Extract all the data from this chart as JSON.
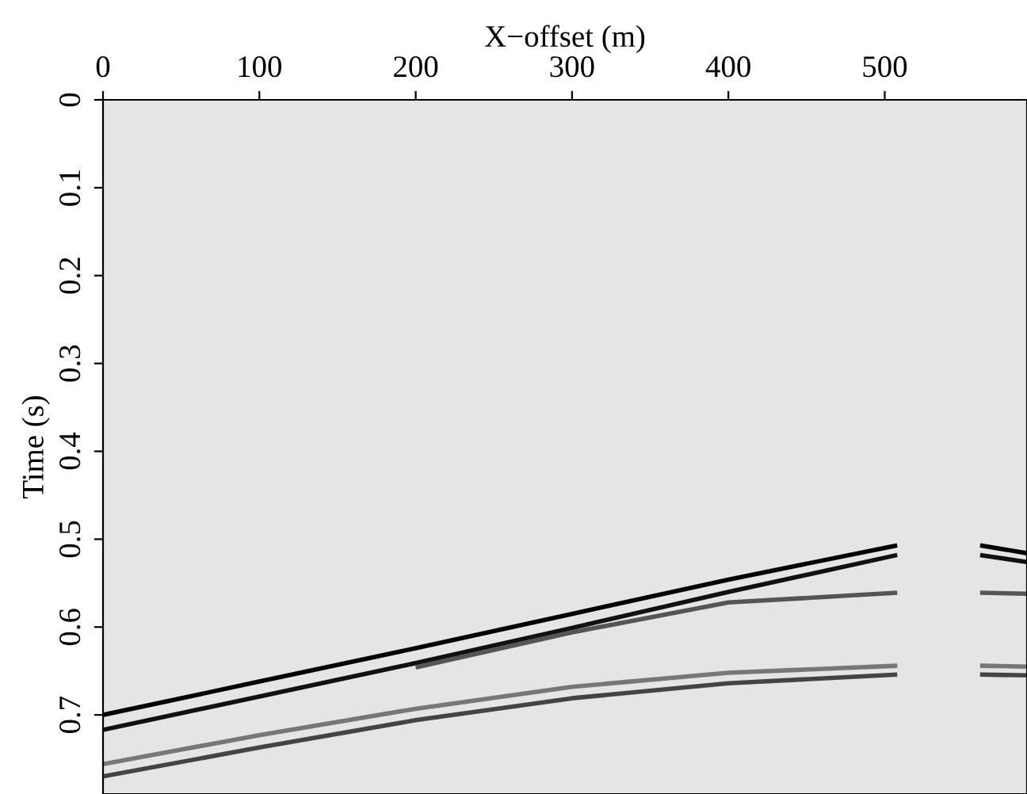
{
  "chart_data": {
    "type": "line",
    "xlabel": "X−offset (m)",
    "ylabel": "Time (s)",
    "x": [
      0,
      100,
      200,
      300,
      400,
      508,
      535,
      561,
      591
    ],
    "series": [
      {
        "color": "#000000",
        "values": [
          0.7,
          0.662,
          0.624,
          0.585,
          0.546,
          0.507,
          null,
          0.507,
          0.516
        ]
      },
      {
        "color": "#111111",
        "values": [
          0.717,
          0.679,
          0.641,
          0.601,
          0.56,
          0.518,
          null,
          0.518,
          0.526
        ]
      },
      {
        "color": "#555555",
        "values": [
          null,
          null,
          0.646,
          0.606,
          0.572,
          0.561,
          null,
          0.561,
          0.562
        ]
      },
      {
        "color": "#444444",
        "values": [
          0.77,
          0.737,
          0.706,
          0.681,
          0.664,
          0.654,
          null,
          0.654,
          0.655
        ]
      },
      {
        "color": "#777777",
        "values": [
          0.756,
          0.723,
          0.693,
          0.668,
          0.652,
          0.644,
          null,
          0.644,
          0.645
        ]
      }
    ],
    "xlim": [
      0,
      591
    ],
    "xticks": [
      0,
      100,
      200,
      300,
      400,
      500
    ],
    "ylim": [
      0.79,
      0
    ],
    "yticks": [
      0,
      0.1,
      0.2,
      0.3,
      0.4,
      0.5,
      0.6,
      0.7
    ],
    "grid": false,
    "line_style": "solid",
    "marker": "none"
  }
}
